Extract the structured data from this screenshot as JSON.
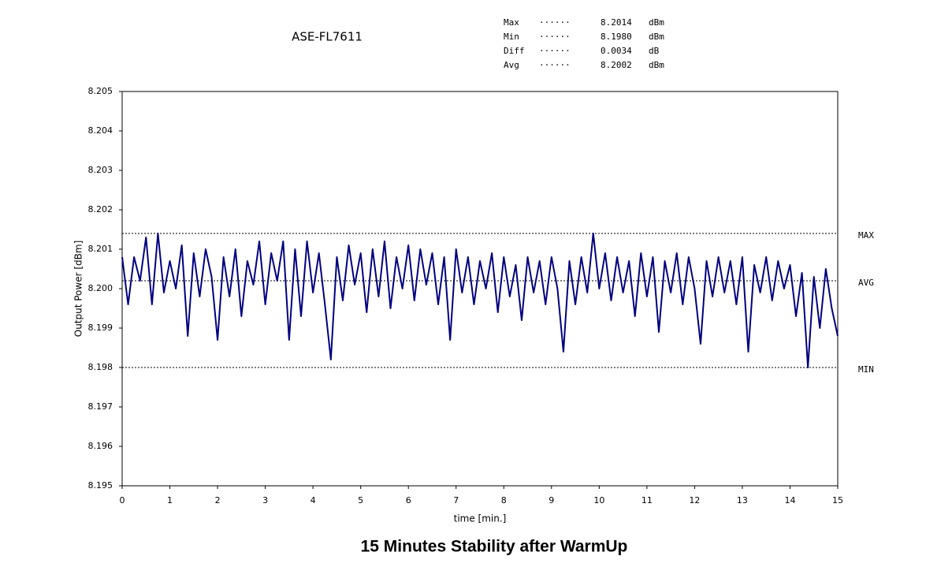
{
  "chart_data": {
    "type": "line",
    "title": "ASE-FL7611",
    "caption": "15 Minutes Stability after WarmUp",
    "x_label": "time [min.]",
    "y_label": "Output Power [dBm]",
    "stats": [
      {
        "name": "Max",
        "dots": "······",
        "value": "8.2014",
        "unit": "dBm"
      },
      {
        "name": "Min",
        "dots": "······",
        "value": "8.1980",
        "unit": "dBm"
      },
      {
        "name": "Diff",
        "dots": "······",
        "value": "0.0034",
        "unit": "dB"
      },
      {
        "name": "Avg",
        "dots": "······",
        "value": "8.2002",
        "unit": "dBm"
      }
    ],
    "reference_lines": [
      {
        "label": "MAX",
        "value": 8.2014
      },
      {
        "label": "AVG",
        "value": 8.2002
      },
      {
        "label": "MIN",
        "value": 8.198
      }
    ],
    "xlim": [
      0,
      15
    ],
    "xticks": [
      0,
      1,
      2,
      3,
      4,
      5,
      6,
      7,
      8,
      9,
      10,
      11,
      12,
      13,
      14,
      15
    ],
    "ylim": [
      8.195,
      8.205
    ],
    "yticks": [
      8.195,
      8.196,
      8.197,
      8.198,
      8.199,
      {
        "value": 8.2,
        "label": "8.200"
      },
      8.201,
      8.202,
      8.203,
      8.204,
      8.205
    ],
    "x": [
      0,
      0.125,
      0.25,
      0.375,
      0.5,
      0.625,
      0.75,
      0.875,
      1,
      1.125,
      1.25,
      1.375,
      1.5,
      1.625,
      1.75,
      1.875,
      2,
      2.125,
      2.25,
      2.375,
      2.5,
      2.625,
      2.75,
      2.875,
      3,
      3.125,
      3.25,
      3.375,
      3.5,
      3.625,
      3.75,
      3.875,
      4,
      4.125,
      4.25,
      4.375,
      4.5,
      4.625,
      4.75,
      4.875,
      5,
      5.125,
      5.25,
      5.375,
      5.5,
      5.625,
      5.75,
      5.875,
      6,
      6.125,
      6.25,
      6.375,
      6.5,
      6.625,
      6.75,
      6.875,
      7,
      7.125,
      7.25,
      7.375,
      7.5,
      7.625,
      7.75,
      7.875,
      8,
      8.125,
      8.25,
      8.375,
      8.5,
      8.625,
      8.75,
      8.875,
      9,
      9.125,
      9.25,
      9.375,
      9.5,
      9.625,
      9.75,
      9.875,
      10,
      10.125,
      10.25,
      10.375,
      10.5,
      10.625,
      10.75,
      10.875,
      11,
      11.125,
      11.25,
      11.375,
      11.5,
      11.625,
      11.75,
      11.875,
      12,
      12.125,
      12.25,
      12.375,
      12.5,
      12.625,
      12.75,
      12.875,
      13,
      13.125,
      13.25,
      13.375,
      13.5,
      13.625,
      13.75,
      13.875,
      14,
      14.125,
      14.25,
      14.375,
      14.5,
      14.625,
      14.75,
      14.875,
      15
    ],
    "series": [
      {
        "color": "#000080",
        "values": [
          8.2008,
          8.1996,
          8.2008,
          8.2002,
          8.2013,
          8.1996,
          8.2014,
          8.1999,
          8.2007,
          8.2,
          8.2011,
          8.1988,
          8.2009,
          8.1998,
          8.201,
          8.2003,
          8.1987,
          8.2008,
          8.1998,
          8.201,
          8.1993,
          8.2007,
          8.2001,
          8.2012,
          8.1996,
          8.2009,
          8.2002,
          8.2012,
          8.1987,
          8.201,
          8.1993,
          8.2012,
          8.1999,
          8.2009,
          8.1996,
          8.1982,
          8.2008,
          8.1997,
          8.2011,
          8.2001,
          8.2009,
          8.1994,
          8.201,
          8.1998,
          8.2012,
          8.1995,
          8.2008,
          8.2,
          8.2011,
          8.1997,
          8.201,
          8.2001,
          8.2009,
          8.1996,
          8.2008,
          8.1987,
          8.201,
          8.1999,
          8.2008,
          8.1996,
          8.2007,
          8.2,
          8.2009,
          8.1994,
          8.2008,
          8.1998,
          8.2006,
          8.1992,
          8.2008,
          8.1999,
          8.2007,
          8.1996,
          8.2008,
          8.2,
          8.1984,
          8.2007,
          8.1996,
          8.2008,
          8.1999,
          8.2014,
          8.2,
          8.2009,
          8.1997,
          8.2008,
          8.1999,
          8.2007,
          8.1993,
          8.2009,
          8.1998,
          8.2008,
          8.1989,
          8.2007,
          8.1999,
          8.2009,
          8.1996,
          8.2008,
          8.2,
          8.1986,
          8.2007,
          8.1998,
          8.2008,
          8.1999,
          8.2007,
          8.1996,
          8.2008,
          8.1984,
          8.2006,
          8.1999,
          8.2008,
          8.1997,
          8.2007,
          8.2,
          8.2006,
          8.1993,
          8.2004,
          8.198,
          8.2003,
          8.199,
          8.2005,
          8.1995,
          8.1988
        ]
      }
    ]
  }
}
